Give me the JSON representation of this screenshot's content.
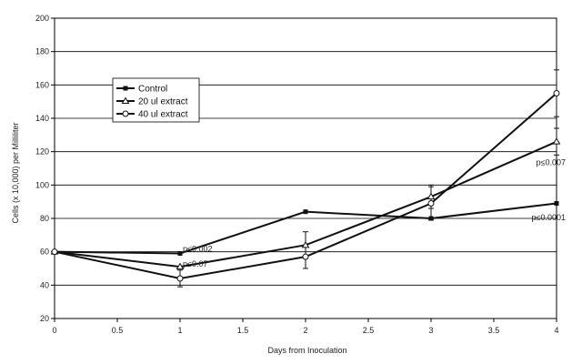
{
  "chart_data": {
    "type": "line",
    "xlabel": "Days from Inoculation",
    "ylabel": "Cells (x 10,000) per Milliliter",
    "xlim": [
      0,
      4
    ],
    "ylim": [
      20,
      200
    ],
    "x_ticks": [
      "0",
      "0.5",
      "1",
      "1.5",
      "2",
      "2.5",
      "3",
      "3.5",
      "4"
    ],
    "y_ticks": [
      "20",
      "40",
      "60",
      "80",
      "100",
      "120",
      "140",
      "160",
      "180",
      "200"
    ],
    "grid": "horizontal",
    "legend_position": "upper-left",
    "x": [
      0,
      1,
      2,
      3,
      4
    ],
    "series": [
      {
        "name": "Control",
        "values": [
          60,
          59,
          84,
          80,
          89
        ],
        "marker": "square",
        "error": [
          null,
          null,
          null,
          null,
          null
        ]
      },
      {
        "name": "20 ul extract",
        "values": [
          60,
          51,
          64,
          93,
          126
        ],
        "marker": "triangle",
        "error": [
          null,
          null,
          8,
          7,
          8
        ]
      },
      {
        "name": "40 ul extract",
        "values": [
          60,
          44,
          57,
          89,
          155
        ],
        "marker": "circle",
        "error": [
          null,
          5,
          7,
          10,
          14
        ]
      }
    ],
    "annotations": [
      {
        "text": "p≤0.002",
        "x": 1,
        "y": 60
      },
      {
        "text": "p≤0.07",
        "x": 1,
        "y": 51
      },
      {
        "text": "p≤0.007",
        "x": 4,
        "y": 112
      },
      {
        "text": "p≤0.0001",
        "x": 4,
        "y": 79
      }
    ]
  }
}
